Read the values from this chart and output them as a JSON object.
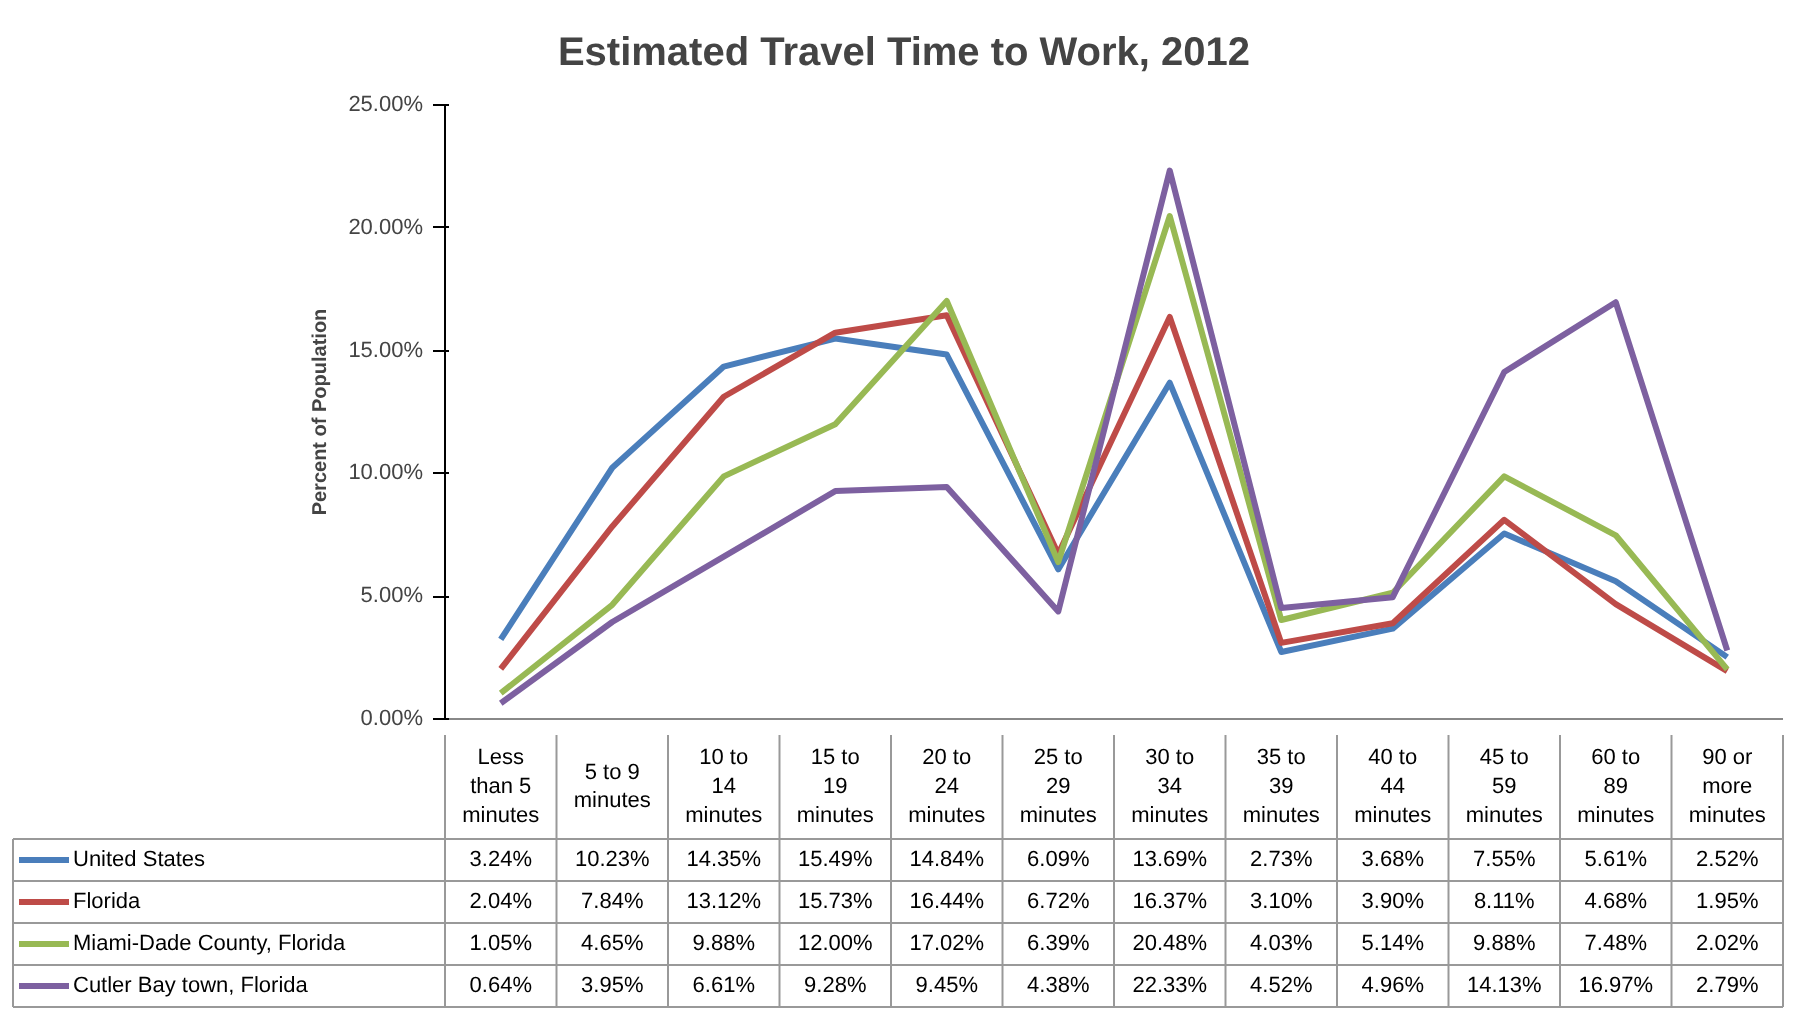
{
  "chart_data": {
    "type": "line",
    "title": "Estimated Travel Time to Work, 2012",
    "ylabel": "Percent of Population",
    "categories": [
      "Less than 5 minutes",
      "5 to 9 minutes",
      "10 to 14 minutes",
      "15 to 19 minutes",
      "20 to 24 minutes",
      "25 to 29 minutes",
      "30 to 34 minutes",
      "35 to 39 minutes",
      "40 to 44 minutes",
      "45 to 59 minutes",
      "60 to 89 minutes",
      "90 or more minutes"
    ],
    "series": [
      {
        "name": "United States",
        "color": "#4a7ebb",
        "values": [
          3.24,
          10.23,
          14.35,
          15.49,
          14.84,
          6.09,
          13.69,
          2.73,
          3.68,
          7.55,
          5.61,
          2.52
        ],
        "value_labels": [
          "3.24%",
          "10.23%",
          "14.35%",
          "15.49%",
          "14.84%",
          "6.09%",
          "13.69%",
          "2.73%",
          "3.68%",
          "7.55%",
          "5.61%",
          "2.52%"
        ]
      },
      {
        "name": "Florida",
        "color": "#be4b48",
        "values": [
          2.04,
          7.84,
          13.12,
          15.73,
          16.44,
          6.72,
          16.37,
          3.1,
          3.9,
          8.11,
          4.68,
          1.95
        ],
        "value_labels": [
          "2.04%",
          "7.84%",
          "13.12%",
          "15.73%",
          "16.44%",
          "6.72%",
          "16.37%",
          "3.10%",
          "3.90%",
          "8.11%",
          "4.68%",
          "1.95%"
        ]
      },
      {
        "name": "Miami-Dade County, Florida",
        "color": "#98b954",
        "values": [
          1.05,
          4.65,
          9.88,
          12.0,
          17.02,
          6.39,
          20.48,
          4.03,
          5.14,
          9.88,
          7.48,
          2.02
        ],
        "value_labels": [
          "1.05%",
          "4.65%",
          "9.88%",
          "12.00%",
          "17.02%",
          "6.39%",
          "20.48%",
          "4.03%",
          "5.14%",
          "9.88%",
          "7.48%",
          "2.02%"
        ]
      },
      {
        "name": "Cutler Bay town, Florida",
        "color": "#7d60a0",
        "values": [
          0.64,
          3.95,
          6.61,
          9.28,
          9.45,
          4.38,
          22.33,
          4.52,
          4.96,
          14.13,
          16.97,
          2.79
        ],
        "value_labels": [
          "0.64%",
          "3.95%",
          "6.61%",
          "9.28%",
          "9.45%",
          "4.38%",
          "22.33%",
          "4.52%",
          "4.96%",
          "14.13%",
          "16.97%",
          "2.79%"
        ]
      }
    ],
    "ylim": [
      0,
      25
    ],
    "yticks": [
      {
        "value": 0,
        "label": "0.00%"
      },
      {
        "value": 5,
        "label": "5.00%"
      },
      {
        "value": 10,
        "label": "10.00%"
      },
      {
        "value": 15,
        "label": "15.00%"
      },
      {
        "value": 20,
        "label": "20.00%"
      },
      {
        "value": 25,
        "label": "25.00%"
      }
    ],
    "grid": false,
    "legend": "bottom",
    "marker": "none",
    "line_style": "solid"
  }
}
